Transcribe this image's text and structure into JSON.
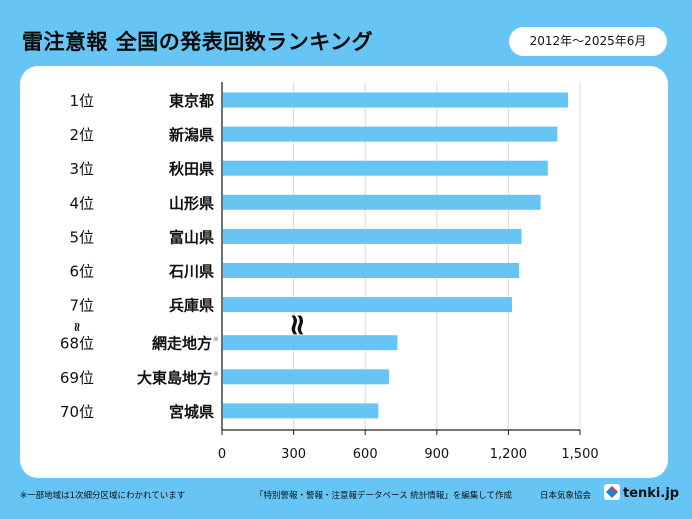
{
  "header": {
    "title": "雷注意報 全国の発表回数ランキング",
    "period": "2012年～2025年6月"
  },
  "chart_data": {
    "type": "bar",
    "orientation": "horizontal",
    "categories": [
      "東京都",
      "新潟県",
      "秋田県",
      "山形県",
      "富山県",
      "石川県",
      "兵庫県",
      "網走地方",
      "大東島地方",
      "宮城県"
    ],
    "category_notes": [
      "",
      "",
      "",
      "",
      "",
      "",
      "",
      "※",
      "※",
      ""
    ],
    "ranks": [
      "1位",
      "2位",
      "3位",
      "4位",
      "5位",
      "6位",
      "7位",
      "68位",
      "69位",
      "70位"
    ],
    "values": [
      1450,
      1405,
      1365,
      1335,
      1255,
      1245,
      1215,
      735,
      700,
      655
    ],
    "xlim": [
      0,
      1500
    ],
    "xticks": [
      "0",
      "300",
      "600",
      "900",
      "1,200",
      "1,500"
    ],
    "xtick_values": [
      0,
      300,
      600,
      900,
      1200,
      1500
    ],
    "grid": true,
    "break_symbol": "≈",
    "bar_color": "#66c5f4"
  },
  "footer": {
    "note": "※一部地域は1次細分区域にわかれています",
    "source": "「特別警報・警報・注意報データベース 統計情報」を編集して作成",
    "agency": "日本気象協会",
    "logo": "tenki.jp"
  }
}
